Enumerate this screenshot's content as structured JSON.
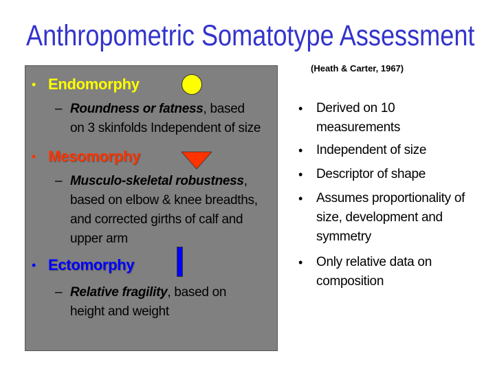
{
  "title": "Anthropometric Somatotype Assessment",
  "colors": {
    "title": "#3333cc",
    "box": "#808080",
    "endo": "#ffff00",
    "meso": "#ff3300",
    "ecto": "#0000ff"
  },
  "left": {
    "endomorphy": {
      "label": "Endomorphy",
      "icon": "yellow-circle",
      "desc_bold": "Roundness or fatness",
      "desc_rest_1": ", based",
      "desc_line2": "on 3 skinfolds Independent of size"
    },
    "mesomorphy": {
      "label": "Mesomorphy",
      "icon": "red-triangle",
      "desc_bold": "Musculo-skeletal robustness",
      "desc_rest_1": ",",
      "desc_line2": "based on elbow & knee breadths,",
      "desc_line3": "and corrected girths of calf and",
      "desc_line4": "upper arm"
    },
    "ectomorphy": {
      "label": "Ectomorphy",
      "icon": "blue-bar",
      "desc_bold": "Relative fragility",
      "desc_rest_1": ", based on",
      "desc_line2": "height and weight"
    }
  },
  "right": {
    "citation": "(Heath & Carter, 1967)",
    "bullets": [
      [
        "Derived on 10",
        "measurements"
      ],
      [
        "Independent of size"
      ],
      [
        "Descriptor of shape"
      ],
      [
        "Assumes proportionality of",
        "size, development and",
        "symmetry"
      ],
      [
        "Only relative data on",
        "composition"
      ]
    ]
  }
}
